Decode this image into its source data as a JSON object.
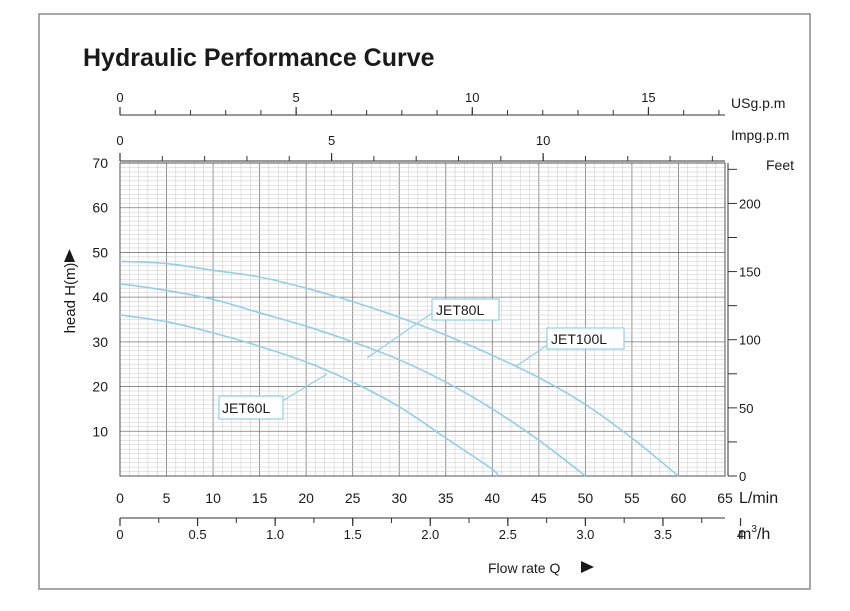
{
  "chart_data": {
    "type": "line",
    "title": "Hydraulic Performance Curve",
    "xlabel": "Flow rate Q",
    "ylabel": "head H(m)",
    "x_units": "L/min",
    "xlim": [
      0,
      65
    ],
    "ylim": [
      0,
      70
    ],
    "x_ticks": [
      "0",
      "5",
      "10",
      "15",
      "20",
      "25",
      "30",
      "35",
      "40",
      "45",
      "50",
      "55",
      "60",
      "65"
    ],
    "y_ticks": [
      "10",
      "20",
      "30",
      "40",
      "50",
      "60",
      "70"
    ],
    "axes": {
      "usgpm": {
        "label": "USg.p.m",
        "ticks": [
          "0",
          "5",
          "10",
          "15"
        ]
      },
      "impgpm": {
        "label": "Impg.p.m",
        "ticks": [
          "0",
          "5",
          "10"
        ]
      },
      "m3h": {
        "label_main": "m",
        "label_sup": "3",
        "label_tail": "/h",
        "ticks": [
          "0",
          "0.5",
          "1.0",
          "1.5",
          "2.0",
          "2.5",
          "3.0",
          "3.5",
          "4"
        ]
      },
      "feet": {
        "label": "Feet",
        "ticks": [
          "0",
          "50",
          "100",
          "150",
          "200"
        ]
      }
    },
    "series": [
      {
        "name": "JET60L",
        "x": [
          0,
          5,
          10,
          15,
          20,
          25,
          30,
          35,
          40,
          40.5
        ],
        "y": [
          36,
          34.5,
          32,
          29,
          25.5,
          21,
          15.5,
          8.5,
          1.5,
          0
        ]
      },
      {
        "name": "JET80L",
        "x": [
          0,
          5,
          10,
          15,
          20,
          25,
          30,
          35,
          40,
          45,
          50
        ],
        "y": [
          43,
          41.5,
          39.5,
          36.5,
          33.5,
          30,
          26,
          21,
          15,
          8,
          0
        ]
      },
      {
        "name": "JET100L",
        "x": [
          0,
          5,
          10,
          15,
          20,
          25,
          30,
          35,
          40,
          45,
          50,
          55,
          60
        ],
        "y": [
          48,
          47.5,
          46,
          44.5,
          42,
          39,
          35.5,
          31.5,
          27,
          22,
          16,
          8.5,
          0
        ]
      }
    ],
    "line_color": "#8fd0e8"
  }
}
